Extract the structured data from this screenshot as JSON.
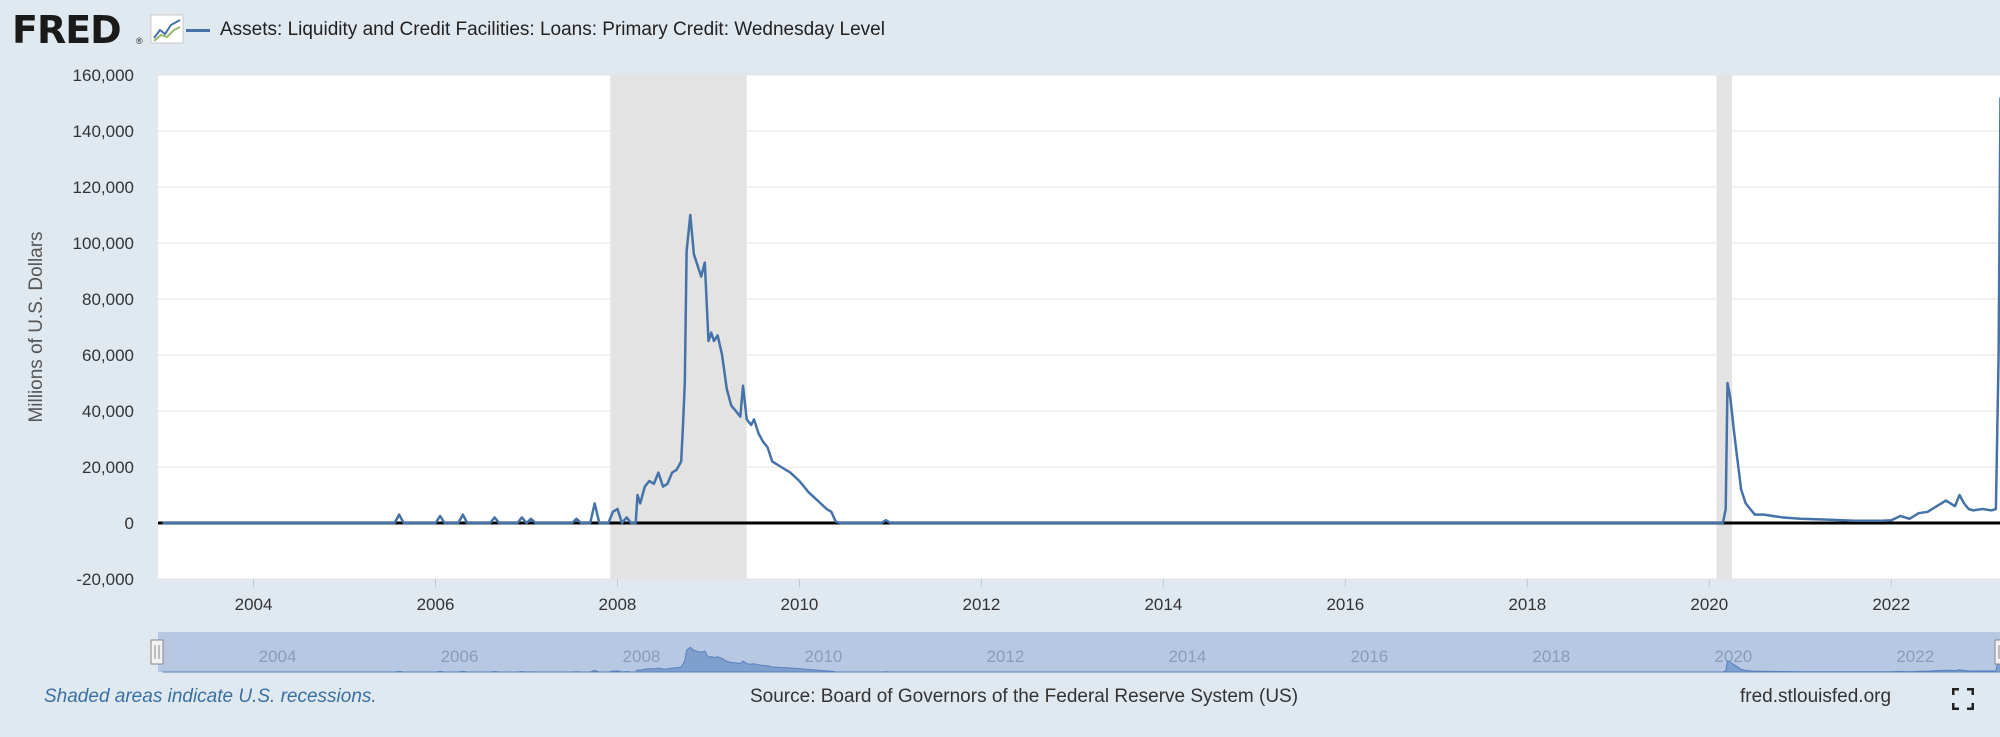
{
  "header": {
    "logo_text": "FRED",
    "logo_mark": "®",
    "legend_label": "Assets: Liquidity and Credit Facilities: Loans: Primary Credit: Wednesday Level"
  },
  "footer": {
    "recession_note": "Shaded areas indicate U.S. recessions.",
    "source": "Source: Board of Governors of the Federal Reserve System (US)",
    "site": "fred.stlouisfed.org"
  },
  "icons": {
    "logo_chart": "line-chart-icon",
    "fullscreen": "fullscreen-icon"
  },
  "colors": {
    "series": "#4572a7",
    "recession": "#e3e3e3",
    "background": "#e1e9f0",
    "navigator": "#b7c8e2"
  },
  "chart_data": {
    "type": "line",
    "title": "",
    "xlabel": "",
    "ylabel": "Millions of U.S. Dollars",
    "xlim": [
      2002.95,
      2023.25
    ],
    "ylim": [
      -20000,
      160000
    ],
    "y_ticks": [
      -20000,
      0,
      20000,
      40000,
      60000,
      80000,
      100000,
      120000,
      140000,
      160000
    ],
    "y_tick_labels": [
      "-20,000",
      "0",
      "20,000",
      "40,000",
      "60,000",
      "80,000",
      "100,000",
      "120,000",
      "140,000",
      "160,000"
    ],
    "x_ticks": [
      2004,
      2006,
      2008,
      2010,
      2012,
      2014,
      2016,
      2018,
      2020,
      2022
    ],
    "x_tick_labels": [
      "2004",
      "2006",
      "2008",
      "2010",
      "2012",
      "2014",
      "2016",
      "2018",
      "2020",
      "2022"
    ],
    "grid": true,
    "recessions": [
      [
        2007.92,
        2009.42
      ],
      [
        2020.08,
        2020.25
      ]
    ],
    "navigator": {
      "x_ticks": [
        2004,
        2006,
        2008,
        2010,
        2012,
        2014,
        2016,
        2018,
        2020,
        2022
      ],
      "x_tick_labels": [
        "2004",
        "2006",
        "2008",
        "2010",
        "2012",
        "2014",
        "2016",
        "2018",
        "2020",
        "2022"
      ]
    },
    "series": [
      {
        "name": "Assets: Liquidity and Credit Facilities: Loans: Primary Credit: Wednesday Level",
        "x": [
          2003.0,
          2005.55,
          2005.6,
          2005.65,
          2006.0,
          2006.05,
          2006.1,
          2006.25,
          2006.3,
          2006.35,
          2006.6,
          2006.65,
          2006.7,
          2006.9,
          2006.95,
          2007.0,
          2007.05,
          2007.1,
          2007.15,
          2007.5,
          2007.55,
          2007.6,
          2007.7,
          2007.75,
          2007.8,
          2007.9,
          2007.95,
          2008.0,
          2008.05,
          2008.1,
          2008.15,
          2008.2,
          2008.22,
          2008.25,
          2008.3,
          2008.35,
          2008.4,
          2008.45,
          2008.5,
          2008.55,
          2008.6,
          2008.65,
          2008.7,
          2008.72,
          2008.74,
          2008.76,
          2008.8,
          2008.84,
          2008.88,
          2008.92,
          2008.96,
          2009.0,
          2009.03,
          2009.06,
          2009.1,
          2009.15,
          2009.2,
          2009.25,
          2009.3,
          2009.35,
          2009.38,
          2009.42,
          2009.47,
          2009.5,
          2009.55,
          2009.6,
          2009.65,
          2009.7,
          2009.8,
          2009.9,
          2010.0,
          2010.05,
          2010.1,
          2010.2,
          2010.3,
          2010.35,
          2010.4,
          2010.45,
          2010.9,
          2010.95,
          2011.0,
          2020.15,
          2020.18,
          2020.2,
          2020.23,
          2020.27,
          2020.3,
          2020.35,
          2020.4,
          2020.45,
          2020.5,
          2020.6,
          2020.8,
          2021.0,
          2021.3,
          2021.6,
          2021.9,
          2022.0,
          2022.1,
          2022.2,
          2022.3,
          2022.4,
          2022.5,
          2022.6,
          2022.7,
          2022.75,
          2022.8,
          2022.85,
          2022.9,
          2023.0,
          2023.1,
          2023.15,
          2023.18,
          2023.2
        ],
        "values": [
          0,
          0,
          3000,
          0,
          0,
          2500,
          0,
          0,
          3000,
          0,
          0,
          2000,
          0,
          0,
          2000,
          0,
          1500,
          0,
          0,
          0,
          1500,
          0,
          0,
          7000,
          0,
          0,
          4000,
          5000,
          0,
          2000,
          0,
          0,
          10000,
          7000,
          13000,
          15000,
          14000,
          18000,
          13000,
          14000,
          18000,
          19000,
          22000,
          35000,
          50000,
          97000,
          110000,
          96000,
          92000,
          88000,
          93000,
          65000,
          68000,
          65000,
          67000,
          60000,
          48000,
          42000,
          40000,
          38000,
          49000,
          37000,
          35000,
          37000,
          32000,
          29000,
          27000,
          22000,
          20000,
          18000,
          15000,
          13000,
          11000,
          8000,
          5000,
          4000,
          500,
          0,
          0,
          1000,
          0,
          0,
          5000,
          50000,
          45000,
          33000,
          25000,
          12000,
          7000,
          5000,
          3000,
          3000,
          2000,
          1500,
          1200,
          800,
          800,
          1000,
          2500,
          1500,
          3500,
          4000,
          6000,
          8000,
          6000,
          10000,
          7000,
          5000,
          4500,
          5000,
          4500,
          5000,
          60000,
          152000
        ]
      }
    ]
  }
}
